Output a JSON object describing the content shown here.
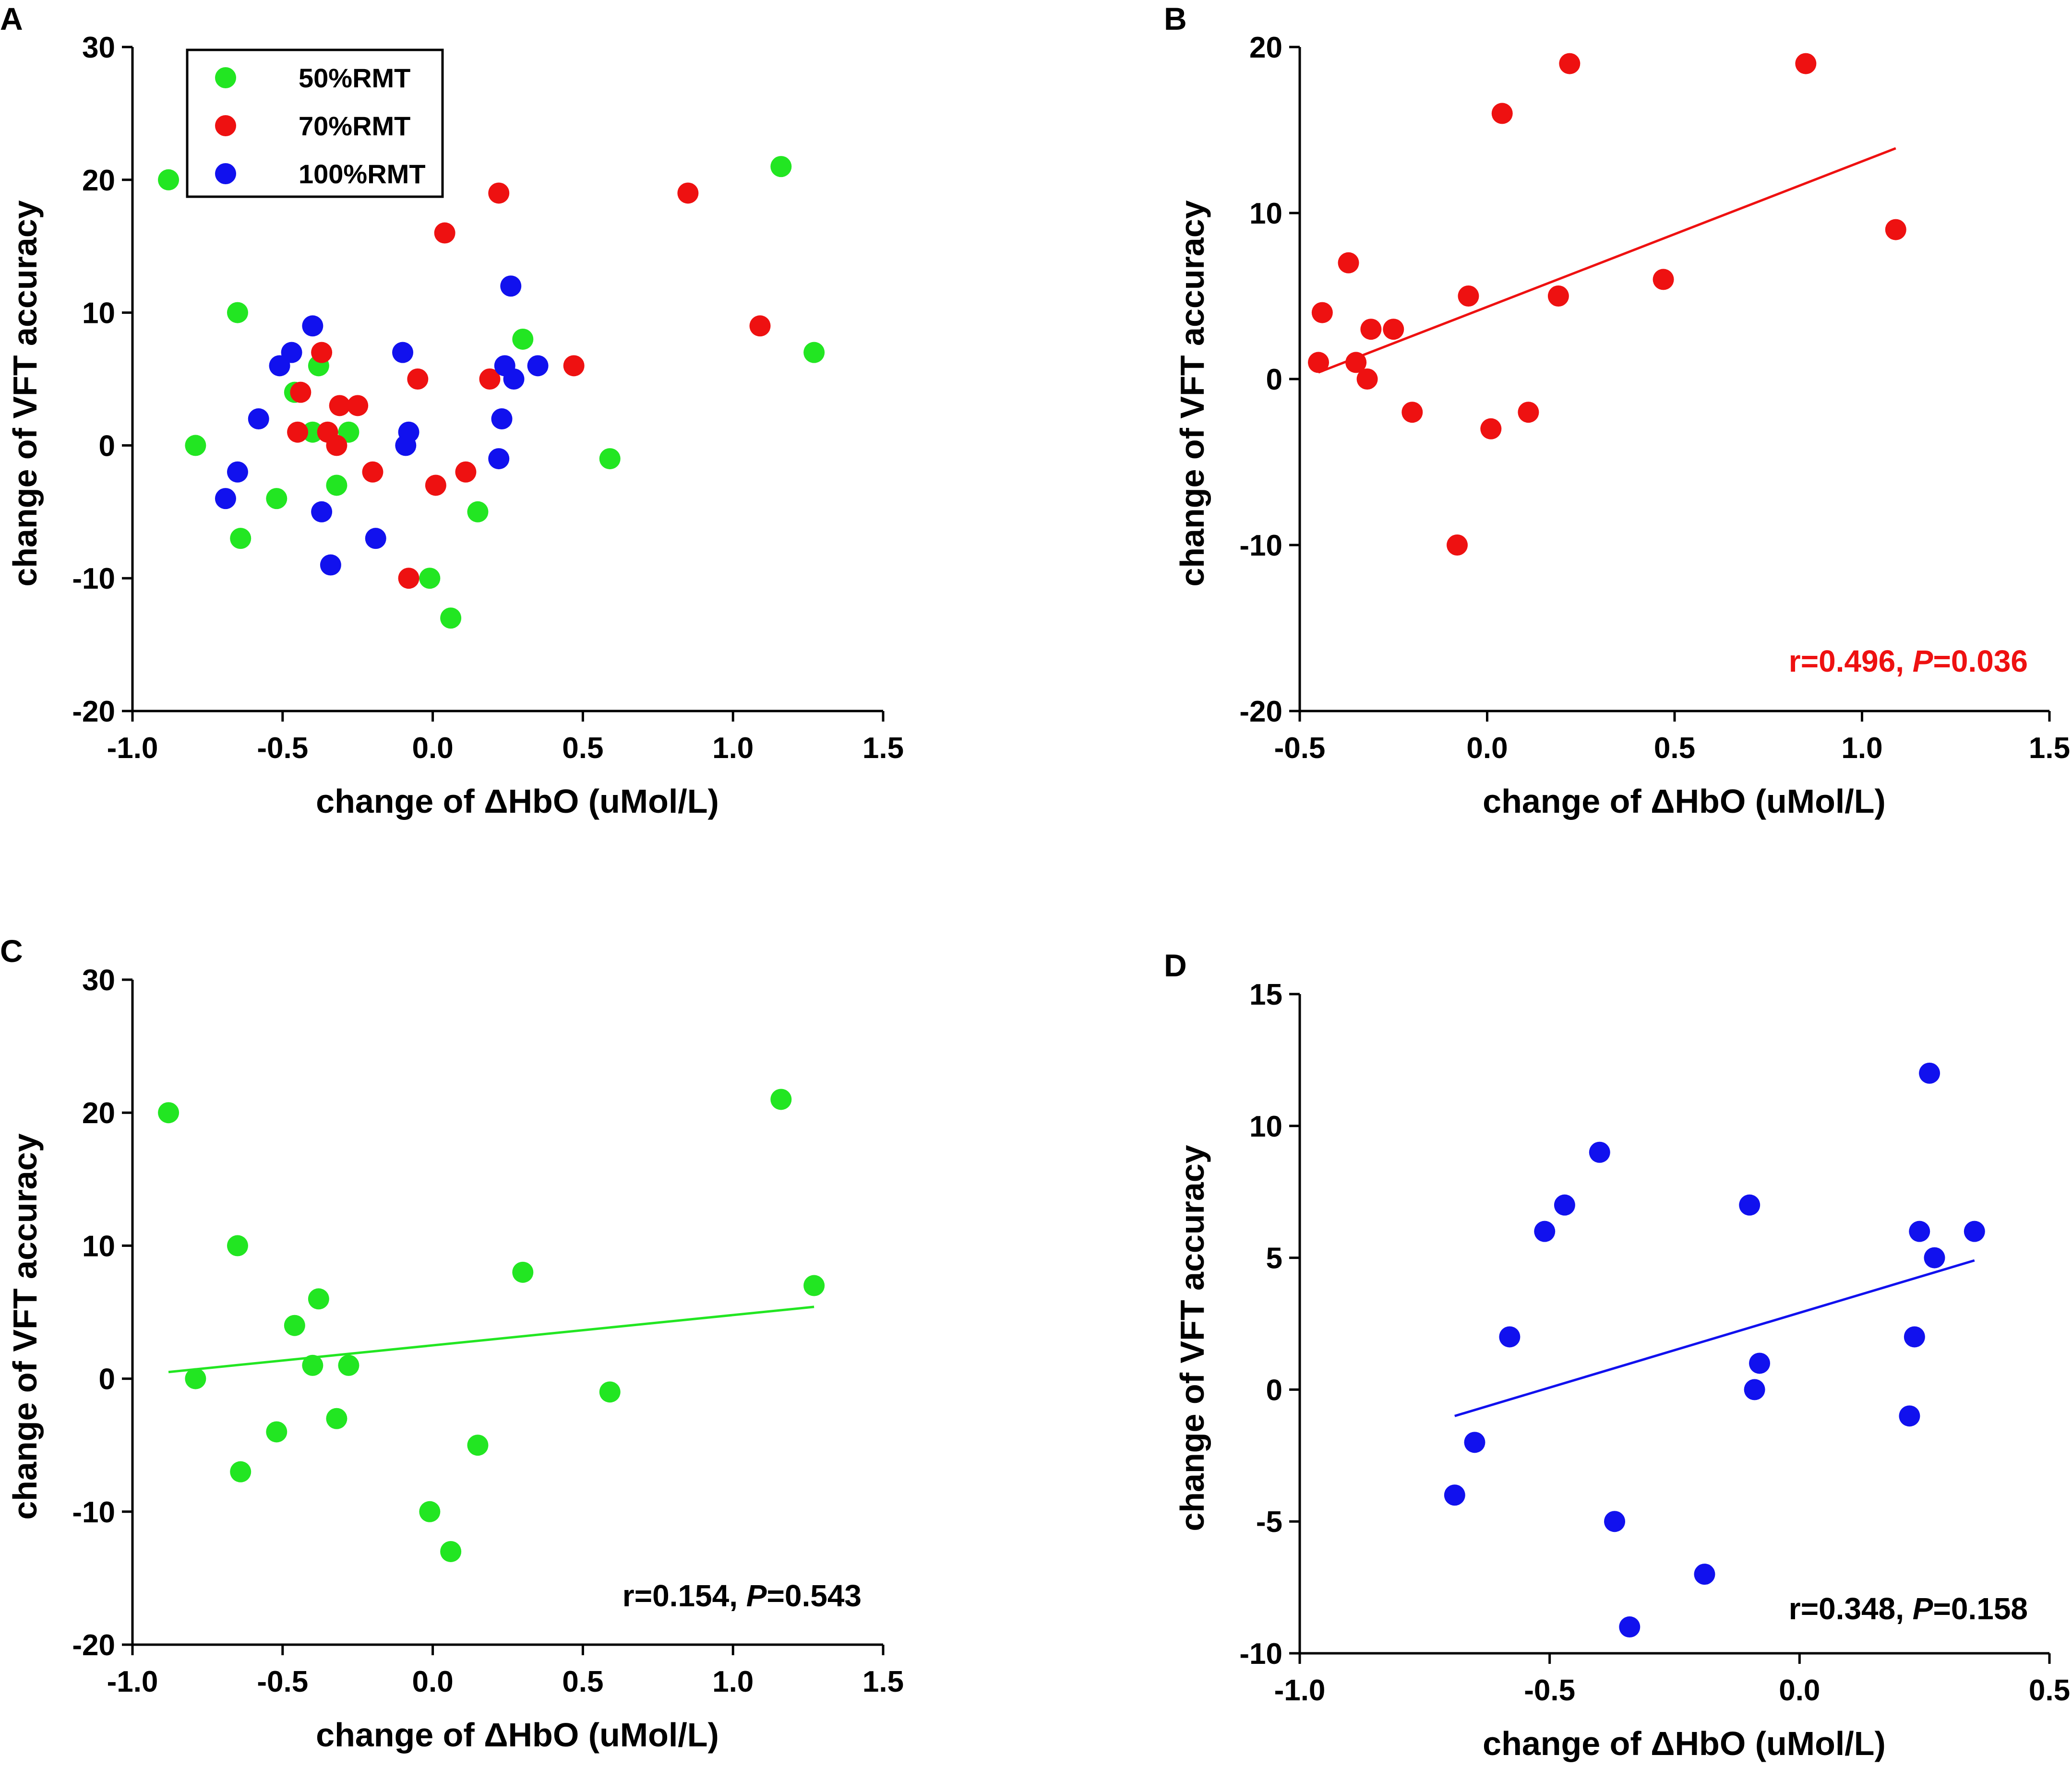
{
  "figure": {
    "x_label": "change of ΔHbO (uMol/L)",
    "y_label": "change of VFT accuracy"
  },
  "colors": {
    "green": "#22e622",
    "red": "#ee1111",
    "blue": "#1111ee"
  },
  "chart_data": [
    {
      "id": "A",
      "type": "scatter",
      "panel_label": "A",
      "xlabel": "change of ΔHbO (uMol/L)",
      "ylabel": "change of VFT accuracy",
      "xlim": [
        -1.0,
        1.5
      ],
      "ylim": [
        -20,
        30
      ],
      "xticks": [
        -1.0,
        -0.5,
        0.0,
        0.5,
        1.0,
        1.5
      ],
      "xtick_labels": [
        "-1.0",
        "-0.5",
        "0.0",
        "0.5",
        "1.0",
        "1.5"
      ],
      "yticks": [
        -20,
        -10,
        0,
        10,
        20,
        30
      ],
      "ytick_labels": [
        "-20",
        "-10",
        "0",
        "10",
        "20",
        "30"
      ],
      "legend": [
        {
          "label": "50%RMT",
          "color": "#22e622"
        },
        {
          "label": "70%RMT",
          "color": "#ee1111"
        },
        {
          "label": "100%RMT",
          "color": "#1111ee"
        }
      ],
      "series": [
        {
          "name": "50%RMT",
          "color": "#22e622",
          "points": [
            [
              -0.88,
              20
            ],
            [
              -0.79,
              0
            ],
            [
              -0.65,
              10
            ],
            [
              -0.64,
              -7
            ],
            [
              -0.52,
              -4
            ],
            [
              -0.46,
              4
            ],
            [
              -0.4,
              1
            ],
            [
              -0.38,
              6
            ],
            [
              -0.32,
              -3
            ],
            [
              -0.28,
              1
            ],
            [
              -0.01,
              -10
            ],
            [
              0.06,
              -13
            ],
            [
              0.15,
              -5
            ],
            [
              0.3,
              8
            ],
            [
              0.59,
              -1
            ],
            [
              1.16,
              21
            ],
            [
              1.27,
              7
            ]
          ]
        },
        {
          "name": "70%RMT",
          "color": "#ee1111",
          "points": [
            [
              -0.45,
              1
            ],
            [
              -0.44,
              4
            ],
            [
              -0.37,
              7
            ],
            [
              -0.35,
              1
            ],
            [
              -0.32,
              0
            ],
            [
              -0.31,
              3
            ],
            [
              -0.25,
              3
            ],
            [
              -0.2,
              -2
            ],
            [
              -0.08,
              -10
            ],
            [
              -0.05,
              5
            ],
            [
              0.01,
              -3
            ],
            [
              0.04,
              16
            ],
            [
              0.11,
              -2
            ],
            [
              0.19,
              5
            ],
            [
              0.22,
              19
            ],
            [
              0.47,
              6
            ],
            [
              0.85,
              19
            ],
            [
              1.09,
              9
            ]
          ]
        },
        {
          "name": "100%RMT",
          "color": "#1111ee",
          "points": [
            [
              -0.69,
              -4
            ],
            [
              -0.65,
              -2
            ],
            [
              -0.58,
              2
            ],
            [
              -0.51,
              6
            ],
            [
              -0.47,
              7
            ],
            [
              -0.4,
              9
            ],
            [
              -0.37,
              -5
            ],
            [
              -0.34,
              -9
            ],
            [
              -0.19,
              -7
            ],
            [
              -0.1,
              7
            ],
            [
              -0.08,
              1
            ],
            [
              -0.09,
              0
            ],
            [
              0.22,
              -1
            ],
            [
              0.23,
              2
            ],
            [
              0.24,
              6
            ],
            [
              0.26,
              12
            ],
            [
              0.27,
              5
            ],
            [
              0.35,
              6
            ]
          ]
        }
      ]
    },
    {
      "id": "B",
      "type": "scatter",
      "panel_label": "B",
      "xlabel": "change of ΔHbO (uMol/L)",
      "ylabel": "change of VFT accuracy",
      "xlim": [
        -0.5,
        1.5
      ],
      "ylim": [
        -20,
        20
      ],
      "xticks": [
        -0.5,
        0.0,
        0.5,
        1.0,
        1.5
      ],
      "xtick_labels": [
        "-0.5",
        "0.0",
        "0.5",
        "1.0",
        "1.5"
      ],
      "yticks": [
        -20,
        -10,
        0,
        10,
        20
      ],
      "ytick_labels": [
        "-20",
        "-10",
        "0",
        "10",
        "20"
      ],
      "series": [
        {
          "name": "70%RMT",
          "color": "#ee1111",
          "points": [
            [
              -0.45,
              1
            ],
            [
              -0.44,
              4
            ],
            [
              -0.37,
              7
            ],
            [
              -0.35,
              1
            ],
            [
              -0.32,
              0
            ],
            [
              -0.31,
              3
            ],
            [
              -0.25,
              3
            ],
            [
              -0.2,
              -2
            ],
            [
              -0.08,
              -10
            ],
            [
              -0.05,
              5
            ],
            [
              0.01,
              -3
            ],
            [
              0.04,
              16
            ],
            [
              0.11,
              -2
            ],
            [
              0.19,
              5
            ],
            [
              0.22,
              19
            ],
            [
              0.47,
              6
            ],
            [
              0.85,
              19
            ],
            [
              1.09,
              9
            ]
          ]
        }
      ],
      "fit_line": {
        "x": [
          -0.45,
          1.09
        ],
        "y": [
          0.4,
          13.9
        ],
        "color": "#ee1111"
      },
      "stat": {
        "r_part": "r=0.496, ",
        "p_letter": "P",
        "p_part": "=0.036",
        "color": "#ee1111"
      }
    },
    {
      "id": "C",
      "type": "scatter",
      "panel_label": "C",
      "xlabel": "change of ΔHbO (uMol/L)",
      "ylabel": "change of VFT accuracy",
      "xlim": [
        -1.0,
        1.5
      ],
      "ylim": [
        -20,
        30
      ],
      "xticks": [
        -1.0,
        -0.5,
        0.0,
        0.5,
        1.0,
        1.5
      ],
      "xtick_labels": [
        "-1.0",
        "-0.5",
        "0.0",
        "0.5",
        "1.0",
        "1.5"
      ],
      "yticks": [
        -20,
        -10,
        0,
        10,
        20,
        30
      ],
      "ytick_labels": [
        "-20",
        "-10",
        "0",
        "10",
        "20",
        "30"
      ],
      "series": [
        {
          "name": "50%RMT",
          "color": "#22e622",
          "points": [
            [
              -0.88,
              20
            ],
            [
              -0.79,
              0
            ],
            [
              -0.65,
              10
            ],
            [
              -0.64,
              -7
            ],
            [
              -0.52,
              -4
            ],
            [
              -0.46,
              4
            ],
            [
              -0.4,
              1
            ],
            [
              -0.38,
              6
            ],
            [
              -0.32,
              -3
            ],
            [
              -0.28,
              1
            ],
            [
              -0.01,
              -10
            ],
            [
              0.06,
              -13
            ],
            [
              0.15,
              -5
            ],
            [
              0.3,
              8
            ],
            [
              0.59,
              -1
            ],
            [
              1.16,
              21
            ],
            [
              1.27,
              7
            ]
          ]
        }
      ],
      "fit_line": {
        "x": [
          -0.88,
          1.27
        ],
        "y": [
          0.5,
          5.4
        ],
        "color": "#22e622"
      },
      "stat": {
        "r_part": "r=0.154, ",
        "p_letter": "P",
        "p_part": "=0.543",
        "color": "#000000"
      }
    },
    {
      "id": "D",
      "type": "scatter",
      "panel_label": "D",
      "xlabel": "change of ΔHbO (uMol/L)",
      "ylabel": "change of VFT accuracy",
      "xlim": [
        -1.0,
        0.5
      ],
      "ylim": [
        -10,
        15
      ],
      "xticks": [
        -1.0,
        -0.5,
        0.0,
        0.5
      ],
      "xtick_labels": [
        "-1.0",
        "-0.5",
        "0.0",
        "0.5"
      ],
      "yticks": [
        -10,
        -5,
        0,
        5,
        10,
        15
      ],
      "ytick_labels": [
        "-10",
        "-5",
        "0",
        "5",
        "10",
        "15"
      ],
      "series": [
        {
          "name": "100%RMT",
          "color": "#1111ee",
          "points": [
            [
              -0.69,
              -4
            ],
            [
              -0.65,
              -2
            ],
            [
              -0.58,
              2
            ],
            [
              -0.51,
              6
            ],
            [
              -0.47,
              7
            ],
            [
              -0.4,
              9
            ],
            [
              -0.37,
              -5
            ],
            [
              -0.34,
              -9
            ],
            [
              -0.19,
              -7
            ],
            [
              -0.1,
              7
            ],
            [
              -0.08,
              1
            ],
            [
              -0.09,
              0
            ],
            [
              0.22,
              -1
            ],
            [
              0.23,
              2
            ],
            [
              0.24,
              6
            ],
            [
              0.26,
              12
            ],
            [
              0.27,
              5
            ],
            [
              0.35,
              6
            ]
          ]
        }
      ],
      "fit_line": {
        "x": [
          -0.69,
          0.35
        ],
        "y": [
          -1.0,
          4.9
        ],
        "color": "#1111ee"
      },
      "stat": {
        "r_part": "r=0.348, ",
        "p_letter": "P",
        "p_part": "=0.158",
        "color": "#000000"
      }
    }
  ]
}
